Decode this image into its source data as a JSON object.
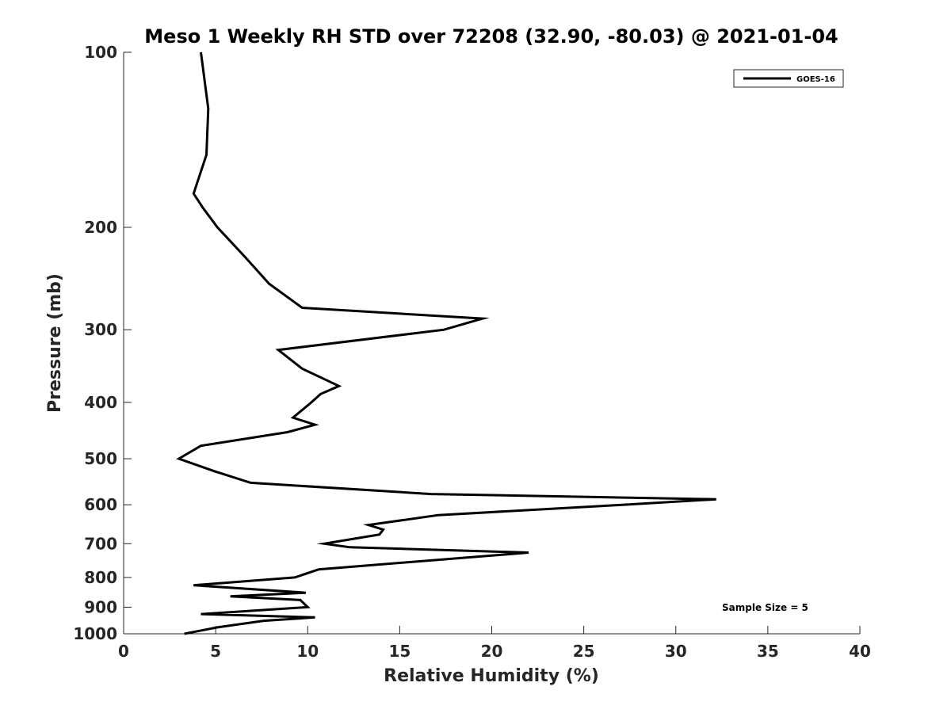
{
  "chart_data": {
    "type": "line",
    "title": "Meso 1 Weekly RH STD over 72208 (32.90, -80.03) @ 2021-01-04",
    "xlabel": "Relative Humidity (%)",
    "ylabel": "Pressure (mb)",
    "xlim": [
      0,
      40
    ],
    "ylim": [
      100,
      1000
    ],
    "y_scale": "log",
    "y_reversed": true,
    "x_ticks": [
      0,
      5,
      10,
      15,
      20,
      25,
      30,
      35,
      40
    ],
    "y_ticks": [
      100,
      200,
      300,
      400,
      500,
      600,
      700,
      800,
      900,
      1000
    ],
    "grid": false,
    "legend_position": "top-right",
    "annotation": "Sample Size = 5",
    "series": [
      {
        "name": "GOES-16",
        "color": "#000000",
        "points": [
          [
            4.2,
            100
          ],
          [
            4.6,
            125
          ],
          [
            4.5,
            150
          ],
          [
            3.8,
            175
          ],
          [
            4.3,
            185
          ],
          [
            5.1,
            200
          ],
          [
            6.6,
            225
          ],
          [
            7.9,
            250
          ],
          [
            9.7,
            275
          ],
          [
            19.5,
            287
          ],
          [
            17.4,
            300
          ],
          [
            8.4,
            325
          ],
          [
            9.7,
            350
          ],
          [
            11.7,
            375
          ],
          [
            10.7,
            387
          ],
          [
            10.2,
            400
          ],
          [
            9.2,
            425
          ],
          [
            10.4,
            437
          ],
          [
            8.9,
            450
          ],
          [
            4.2,
            475
          ],
          [
            3.0,
            500
          ],
          [
            4.9,
            525
          ],
          [
            6.9,
            550
          ],
          [
            16.7,
            575
          ],
          [
            32.2,
            587
          ],
          [
            27.1,
            600
          ],
          [
            17.1,
            625
          ],
          [
            13.3,
            650
          ],
          [
            14.1,
            662
          ],
          [
            13.9,
            675
          ],
          [
            10.9,
            700
          ],
          [
            12.3,
            710
          ],
          [
            22.0,
            725
          ],
          [
            10.6,
            775
          ],
          [
            9.3,
            800
          ],
          [
            3.8,
            825
          ],
          [
            9.9,
            850
          ],
          [
            5.8,
            862
          ],
          [
            9.6,
            875
          ],
          [
            10.0,
            900
          ],
          [
            4.2,
            925
          ],
          [
            10.4,
            937
          ],
          [
            7.6,
            950
          ],
          [
            5.1,
            975
          ],
          [
            3.3,
            1000
          ]
        ]
      }
    ]
  }
}
